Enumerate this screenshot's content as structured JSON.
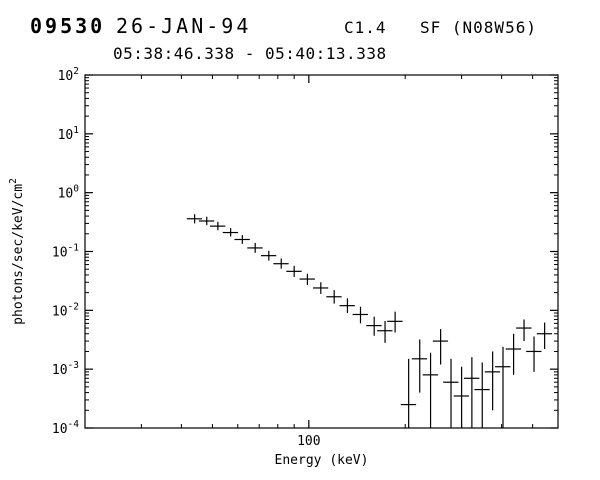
{
  "header": {
    "flare_id": "09530",
    "date": "26-JAN-94",
    "goes_class": "C1.4",
    "flare_type": "SF (N08W56)",
    "time_range": "05:38:46.338 - 05:40:13.338"
  },
  "chart_data": {
    "type": "scatter",
    "title": "",
    "xlabel": "Energy (keV)",
    "ylabel": "photons/sec/keV/cm^2",
    "xscale": "log",
    "yscale": "log",
    "xlim": [
      20,
      600
    ],
    "ylim": [
      0.0001,
      100
    ],
    "x_tick_labels": [
      "100"
    ],
    "y_tick_exponents": [
      2,
      1,
      0,
      -1,
      -2,
      -3,
      -4
    ],
    "grid": false,
    "legend": "none",
    "marker": "cross-with-error-bars",
    "color": "#000000",
    "bin_half_width_frac": 0.055,
    "points": [
      {
        "energy_keV": 44,
        "flux": 0.36,
        "err_lo": 0.3,
        "err_hi": 0.43
      },
      {
        "energy_keV": 48,
        "flux": 0.33,
        "err_lo": 0.28,
        "err_hi": 0.39
      },
      {
        "energy_keV": 52,
        "flux": 0.27,
        "err_lo": 0.23,
        "err_hi": 0.32
      },
      {
        "energy_keV": 57,
        "flux": 0.21,
        "err_lo": 0.18,
        "err_hi": 0.25
      },
      {
        "energy_keV": 62,
        "flux": 0.16,
        "err_lo": 0.135,
        "err_hi": 0.19
      },
      {
        "energy_keV": 68,
        "flux": 0.115,
        "err_lo": 0.095,
        "err_hi": 0.14
      },
      {
        "energy_keV": 75,
        "flux": 0.085,
        "err_lo": 0.07,
        "err_hi": 0.103
      },
      {
        "energy_keV": 82,
        "flux": 0.062,
        "err_lo": 0.051,
        "err_hi": 0.076
      },
      {
        "energy_keV": 90,
        "flux": 0.046,
        "err_lo": 0.037,
        "err_hi": 0.057
      },
      {
        "energy_keV": 99,
        "flux": 0.034,
        "err_lo": 0.027,
        "err_hi": 0.042
      },
      {
        "energy_keV": 109,
        "flux": 0.024,
        "err_lo": 0.019,
        "err_hi": 0.03
      },
      {
        "energy_keV": 120,
        "flux": 0.017,
        "err_lo": 0.013,
        "err_hi": 0.022
      },
      {
        "energy_keV": 132,
        "flux": 0.012,
        "err_lo": 0.009,
        "err_hi": 0.016
      },
      {
        "energy_keV": 145,
        "flux": 0.0085,
        "err_lo": 0.006,
        "err_hi": 0.0115
      },
      {
        "energy_keV": 160,
        "flux": 0.0055,
        "err_lo": 0.0037,
        "err_hi": 0.0078
      },
      {
        "energy_keV": 173,
        "flux": 0.0045,
        "err_lo": 0.0028,
        "err_hi": 0.0066
      },
      {
        "energy_keV": 186,
        "flux": 0.0065,
        "err_lo": 0.0042,
        "err_hi": 0.0095
      },
      {
        "energy_keV": 205,
        "flux": 0.00025,
        "err_lo": 0.0001,
        "err_hi": 0.0015
      },
      {
        "energy_keV": 222,
        "flux": 0.0015,
        "err_lo": 0.0004,
        "err_hi": 0.0032
      },
      {
        "energy_keV": 240,
        "flux": 0.0008,
        "err_lo": 0.0001,
        "err_hi": 0.0019
      },
      {
        "energy_keV": 258,
        "flux": 0.003,
        "err_lo": 0.0012,
        "err_hi": 0.0048
      },
      {
        "energy_keV": 278,
        "flux": 0.0006,
        "err_lo": 0.0001,
        "err_hi": 0.0015
      },
      {
        "energy_keV": 300,
        "flux": 0.00035,
        "err_lo": 0.0001,
        "err_hi": 0.0011
      },
      {
        "energy_keV": 323,
        "flux": 0.0007,
        "err_lo": 0.0001,
        "err_hi": 0.0016
      },
      {
        "energy_keV": 348,
        "flux": 0.00045,
        "err_lo": 0.0001,
        "err_hi": 0.0013
      },
      {
        "energy_keV": 375,
        "flux": 0.0009,
        "err_lo": 0.0002,
        "err_hi": 0.002
      },
      {
        "energy_keV": 404,
        "flux": 0.0011,
        "err_lo": 0.0001,
        "err_hi": 0.0024
      },
      {
        "energy_keV": 436,
        "flux": 0.0022,
        "err_lo": 0.0008,
        "err_hi": 0.004
      },
      {
        "energy_keV": 470,
        "flux": 0.005,
        "err_lo": 0.003,
        "err_hi": 0.007
      },
      {
        "energy_keV": 505,
        "flux": 0.002,
        "err_lo": 0.0009,
        "err_hi": 0.0036
      },
      {
        "energy_keV": 545,
        "flux": 0.004,
        "err_lo": 0.0022,
        "err_hi": 0.0062
      }
    ]
  }
}
